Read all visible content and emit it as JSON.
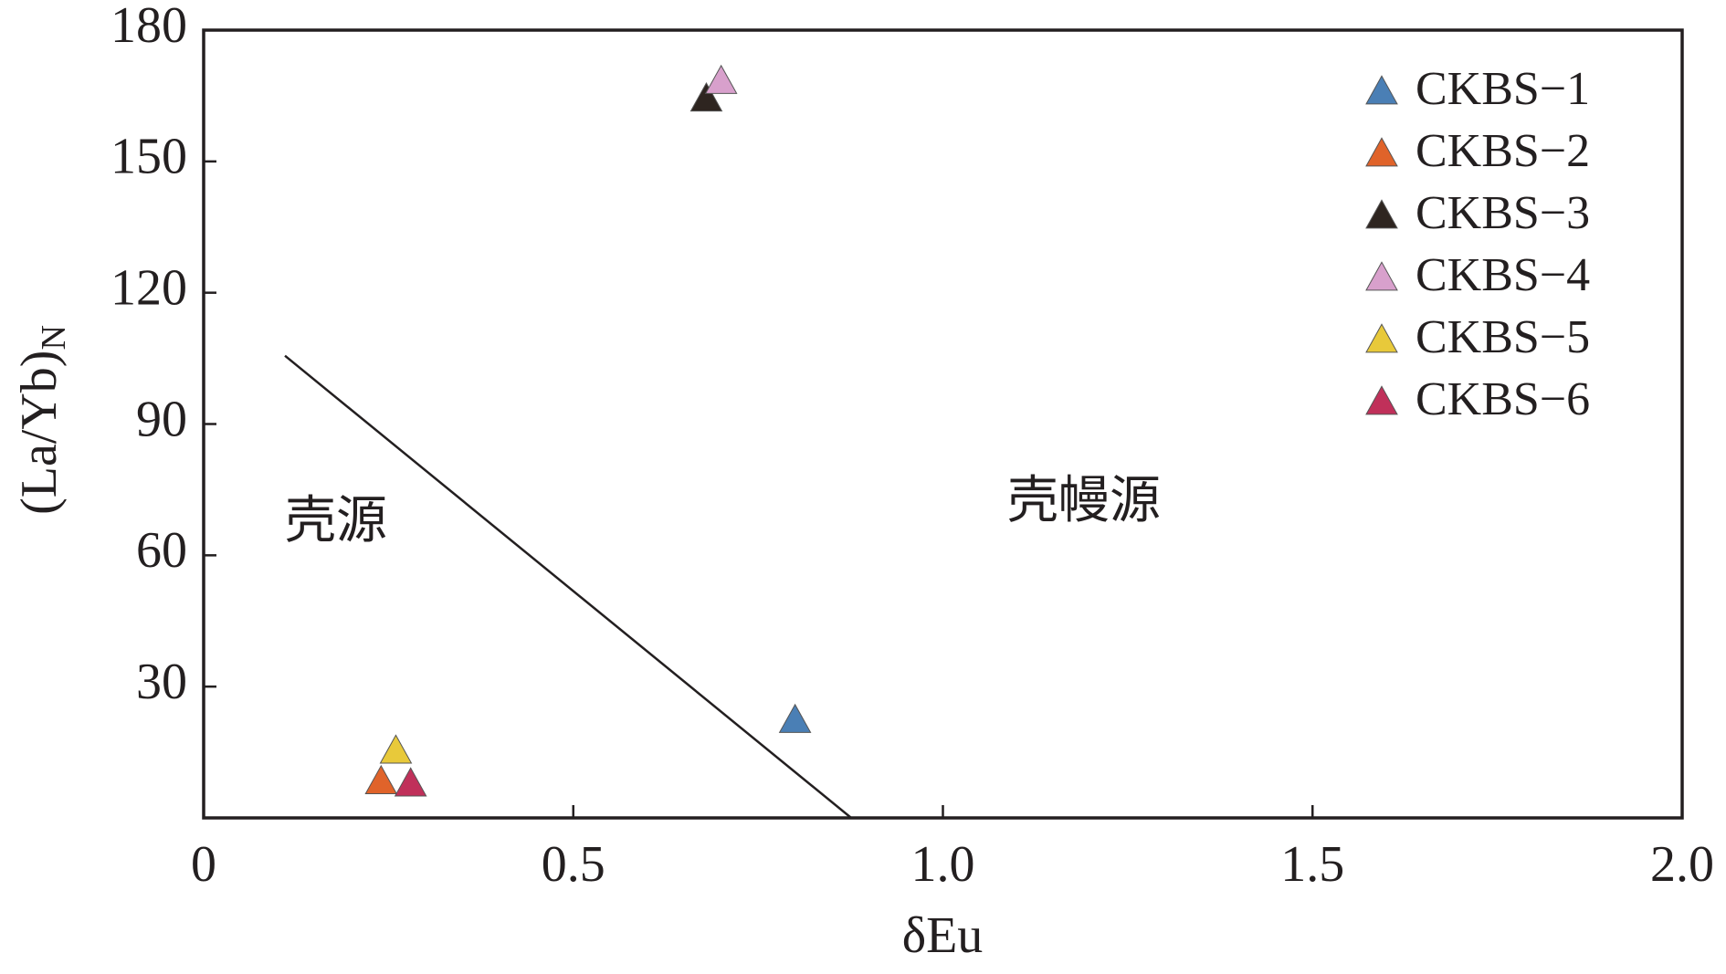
{
  "chart_data": {
    "type": "scatter",
    "xlabel": "δEu",
    "ylabel": "(La/Yb)",
    "ylabel_sub": "N",
    "xlim": [
      0,
      2
    ],
    "ylim": [
      0,
      180
    ],
    "xticks": [
      {
        "value": 0,
        "label": "0"
      },
      0.5,
      {
        "value": 1,
        "label": "1.0"
      },
      1.5,
      {
        "value": 2,
        "label": "2.0"
      }
    ],
    "yticks": [
      30,
      60,
      90,
      120,
      150,
      180
    ],
    "legend": "upper right",
    "series": [
      {
        "name": "CKBS−1",
        "color": "#4a7fb5",
        "x": [
          0.8
        ],
        "values": [
          22
        ]
      },
      {
        "name": "CKBS−2",
        "color": "#e0632a",
        "x": [
          0.24
        ],
        "values": [
          8
        ]
      },
      {
        "name": "CKBS−3",
        "color": "#2e2520",
        "x": [
          0.68
        ],
        "values": [
          164
        ]
      },
      {
        "name": "CKBS−4",
        "color": "#d8a0cc",
        "x": [
          0.7
        ],
        "values": [
          168
        ]
      },
      {
        "name": "CKBS−5",
        "color": "#e8c93a",
        "x": [
          0.26
        ],
        "values": [
          15
        ]
      },
      {
        "name": "CKBS−6",
        "color": "#c0305a",
        "x": [
          0.28
        ],
        "values": [
          7.5
        ]
      }
    ],
    "lines": [
      {
        "x": [
          0.11,
          0.876
        ],
        "values": [
          105.6,
          0
        ]
      }
    ],
    "annotations": [
      "壳源",
      "壳幔源"
    ]
  }
}
